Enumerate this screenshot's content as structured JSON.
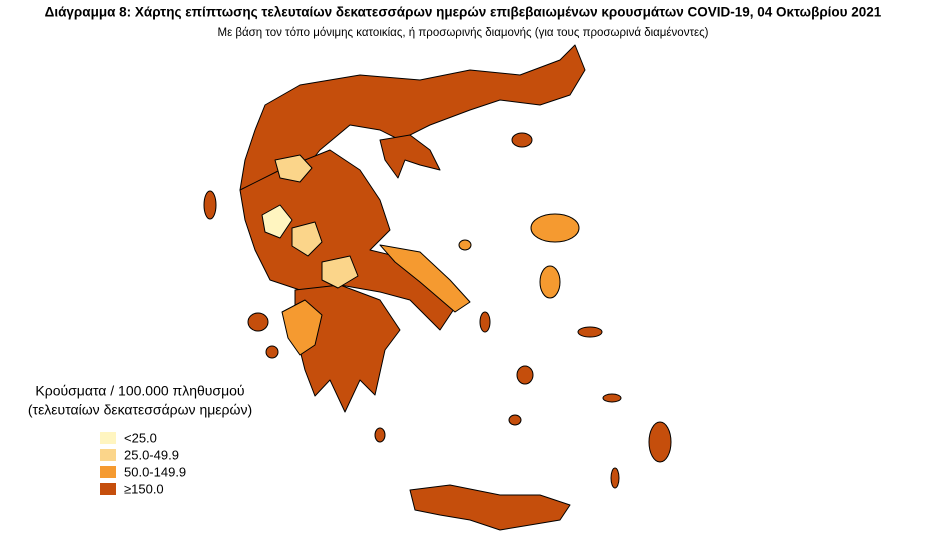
{
  "header": {
    "title": "Διάγραμμα 8: Χάρτης επίπτωσης τελευταίων δεκατεσσάρων ημερών επιβεβαιωμένων κρουσμάτων COVID-19, 04 Οκτωβρίου 2021",
    "subtitle": "Με βάση τον τόπο μόνιμης κατοικίας, ή προσωρινής διαμονής (για τους προσωρινά διαμένοντες)"
  },
  "legend": {
    "title": [
      "Κρούσματα / 100.000 πληθυσμού",
      "(τελευταίων δεκατεσσάρων ημερών)"
    ],
    "items": [
      {
        "label": "<25.0",
        "color": "#fff5c0"
      },
      {
        "label": "25.0-49.9",
        "color": "#fbd58a"
      },
      {
        "label": "50.0-149.9",
        "color": "#f59a30"
      },
      {
        "label": "≥150.0",
        "color": "#c54e0c"
      }
    ]
  }
}
